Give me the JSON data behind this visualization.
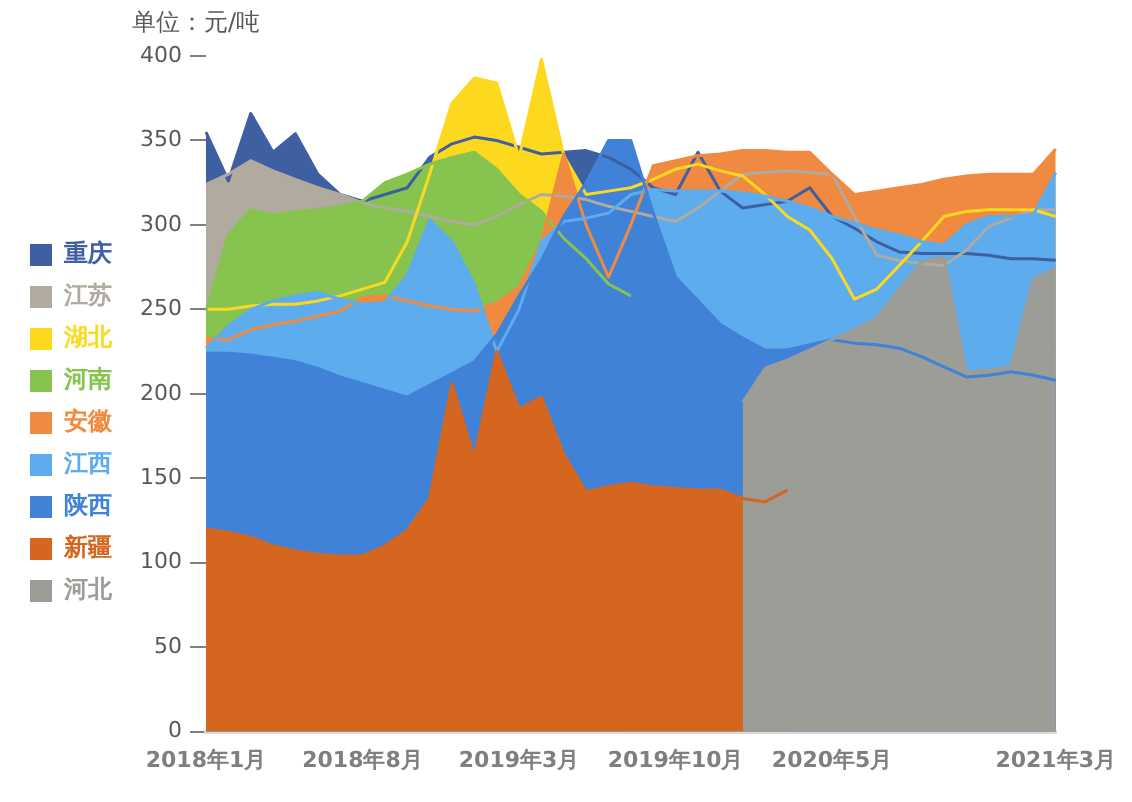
{
  "chart_data": {
    "type": "area",
    "ylabel": "单位：元/吨",
    "categories": [
      "2018年1月",
      null,
      null,
      null,
      null,
      null,
      null,
      "2018年8月",
      null,
      null,
      null,
      null,
      null,
      null,
      "2019年3月",
      null,
      null,
      null,
      null,
      null,
      null,
      "2019年10月",
      null,
      null,
      null,
      null,
      null,
      null,
      "2020年5月",
      null,
      null,
      null,
      null,
      null,
      null,
      null,
      null,
      null,
      "2021年3月"
    ],
    "series": [
      {
        "name": "重庆",
        "color": "#3f5fa3",
        "values": [
          355,
          326,
          366,
          343,
          354,
          330,
          318,
          314,
          318,
          322,
          340,
          348,
          352,
          350,
          346,
          342,
          343,
          344,
          340,
          333,
          322,
          318,
          343,
          320,
          310,
          312,
          314,
          322,
          305,
          298,
          290,
          284,
          283,
          283,
          283,
          282,
          280,
          280,
          279
        ]
      },
      {
        "name": "江苏",
        "color": "#b1aa9f",
        "values": [
          324,
          330,
          338,
          332,
          327,
          322,
          318,
          313,
          310,
          308,
          305,
          302,
          300,
          305,
          312,
          318,
          317,
          315,
          311,
          308,
          305,
          302,
          310,
          320,
          330,
          331,
          332,
          331,
          330,
          305,
          282,
          279,
          277,
          276,
          285,
          299,
          304,
          309,
          309
        ]
      },
      {
        "name": "湖北",
        "color": "#fcd91e",
        "values": [
          250,
          250,
          252,
          253,
          253,
          255,
          258,
          262,
          266,
          290,
          330,
          372,
          387,
          384,
          340,
          398,
          341,
          318,
          320,
          322,
          327,
          333,
          336,
          332,
          329,
          318,
          305,
          297,
          280,
          256,
          262,
          276,
          290,
          305,
          308,
          309,
          309,
          309,
          305
        ]
      },
      {
        "name": "河南",
        "color": "#86c34f",
        "values": [
          249,
          294,
          309,
          306,
          308,
          309,
          311,
          314,
          325,
          330,
          336,
          340,
          343,
          333,
          318,
          308,
          292,
          280,
          265,
          258,
          null,
          null,
          null,
          null,
          null,
          null,
          null,
          null,
          null,
          null,
          null,
          null,
          null,
          null,
          null,
          null,
          null,
          null,
          null
        ]
      },
      {
        "name": "安徽",
        "color": "#f08a41",
        "values": [
          233,
          232,
          238,
          241,
          243,
          246,
          249,
          257,
          258,
          255,
          252,
          250,
          249,
          254,
          263,
          290,
          342,
          300,
          269,
          300,
          335,
          338,
          341,
          342,
          344,
          344,
          343,
          343,
          330,
          318,
          320,
          322,
          324,
          327,
          329,
          330,
          330,
          330,
          345
        ]
      },
      {
        "name": "江西",
        "color": "#5cacee",
        "values": [
          227,
          240,
          250,
          255,
          258,
          260,
          256,
          253,
          254,
          270,
          303,
          290,
          265,
          225,
          250,
          290,
          302,
          304,
          307,
          318,
          321,
          320,
          320,
          320,
          319,
          317,
          314,
          310,
          305,
          301,
          297,
          294,
          290,
          288,
          300,
          305,
          305,
          306,
          331
        ]
      },
      {
        "name": "陕西",
        "color": "#3f82d8",
        "values": [
          224,
          224,
          223,
          221,
          219,
          215,
          210,
          206,
          202,
          198,
          205,
          212,
          219,
          235,
          258,
          279,
          305,
          325,
          350,
          350,
          307,
          269,
          255,
          241,
          233,
          226,
          226,
          229,
          232,
          230,
          229,
          227,
          222,
          216,
          210,
          211,
          213,
          211,
          208
        ]
      },
      {
        "name": "新疆",
        "color": "#d5661f",
        "values": [
          120,
          118,
          115,
          110,
          107,
          105,
          104,
          104,
          110,
          119,
          138,
          206,
          162,
          225,
          191,
          198,
          164,
          142,
          145,
          147,
          145,
          144,
          143,
          143,
          138,
          136,
          143,
          null,
          null,
          null,
          null,
          null,
          null,
          null,
          null,
          null,
          null,
          null,
          null
        ]
      },
      {
        "name": "河北",
        "color": "#9d9d98",
        "values": [
          null,
          null,
          null,
          null,
          null,
          null,
          null,
          null,
          null,
          null,
          null,
          null,
          null,
          null,
          null,
          null,
          null,
          null,
          null,
          null,
          null,
          null,
          null,
          null,
          195,
          215,
          220,
          226,
          232,
          238,
          245,
          262,
          278,
          281,
          213,
          214,
          216,
          268,
          274
        ]
      }
    ],
    "ylim": [
      0,
      400
    ],
    "yticks": [
      0,
      50,
      100,
      150,
      200,
      250,
      300,
      350,
      400
    ],
    "legend": "left"
  }
}
